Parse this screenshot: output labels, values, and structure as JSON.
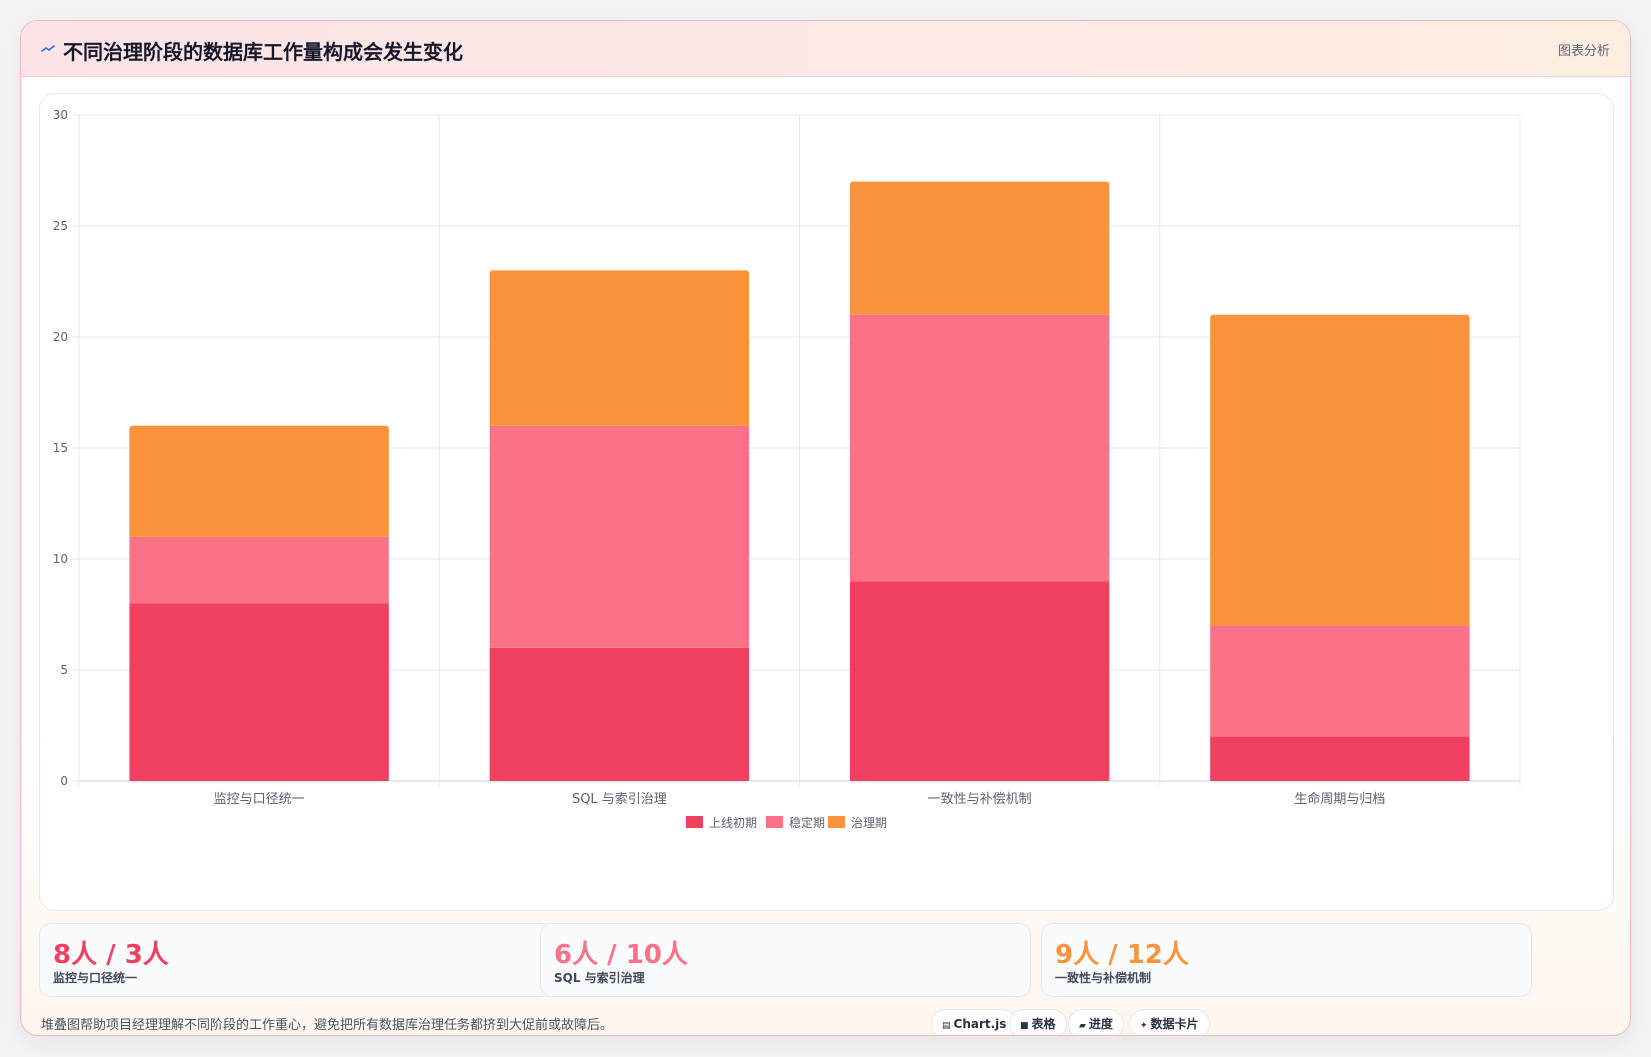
{
  "header": {
    "title": "不同治理阶段的数据库工作量构成会发生变化",
    "tag": "图表分析"
  },
  "colors": {
    "launch": "#f03f5f",
    "stable": "#fb7185",
    "governance": "#fb923c",
    "grid": "#e6e8ee",
    "axis_text": "#5b6275"
  },
  "chart_data": {
    "type": "bar",
    "stacked": true,
    "categories": [
      "监控与口径统一",
      "SQL 与索引治理",
      "一致性与补偿机制",
      "生命周期与归档"
    ],
    "series": [
      {
        "name": "上线初期",
        "values": [
          8,
          6,
          9,
          2
        ],
        "color": "#f03f5f"
      },
      {
        "name": "稳定期",
        "values": [
          3,
          10,
          12,
          5
        ],
        "color": "#fb7185"
      },
      {
        "name": "治理期",
        "values": [
          5,
          7,
          6,
          14
        ],
        "color": "#fb923c"
      }
    ],
    "ylim": [
      0,
      30
    ],
    "yticks": [
      0,
      5,
      10,
      15,
      20,
      25,
      30
    ],
    "grid": true,
    "legend_position": "bottom"
  },
  "stats": [
    {
      "value": "8人 / 3人",
      "label": "监控与口径统一",
      "color": "#f03f5f"
    },
    {
      "value": "6人 / 10人",
      "label": "SQL 与索引治理",
      "color": "#fb7185"
    },
    {
      "value": "9人 / 12人",
      "label": "一致性与补偿机制",
      "color": "#fb923c"
    }
  ],
  "footer": {
    "note": "堆叠图帮助项目经理理解不同阶段的工作重心，避免把所有数据库治理任务都挤到大促前或故障后。",
    "chips": [
      {
        "icon": "▤",
        "label": "Chart.js",
        "icon_name": "chart-icon"
      },
      {
        "icon": "■",
        "label": "表格",
        "icon_name": "table-icon"
      },
      {
        "icon": "▰",
        "label": "进度",
        "icon_name": "progress-icon"
      },
      {
        "icon": "✦",
        "label": "数据卡片",
        "icon_name": "sparkle-icon"
      }
    ]
  }
}
